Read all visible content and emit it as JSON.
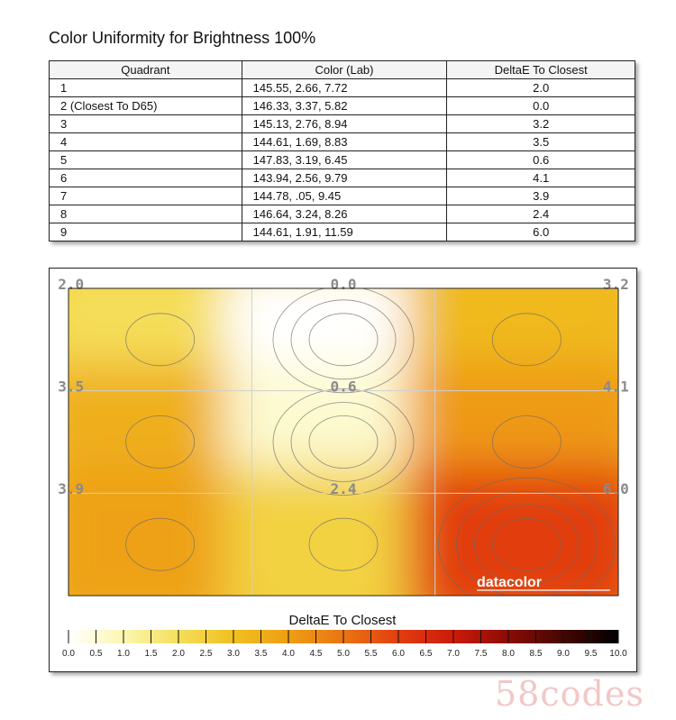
{
  "title": "Color Uniformity for Brightness 100%",
  "table": {
    "headers": [
      "Quadrant",
      "Color (Lab)",
      "DeltaE To Closest"
    ],
    "rows": [
      [
        "1",
        "145.55,  2.66,  7.72",
        "2.0"
      ],
      [
        "2 (Closest To D65)",
        "146.33,  3.37,  5.82",
        "0.0"
      ],
      [
        "3",
        "145.13,  2.76,  8.94",
        "3.2"
      ],
      [
        "4",
        "144.61,  1.69,  8.83",
        "3.5"
      ],
      [
        "5",
        "147.83,  3.19,  6.45",
        "0.6"
      ],
      [
        "6",
        "143.94,  2.56,  9.79",
        "4.1"
      ],
      [
        "7",
        "144.78,  .05,  9.45",
        "3.9"
      ],
      [
        "8",
        "146.64,  3.24,  8.26",
        "2.4"
      ],
      [
        "9",
        "144.61,  1.91,  11.59",
        "6.0"
      ]
    ]
  },
  "chart_data": {
    "type": "heatmap",
    "title": "DeltaE To Closest",
    "grid": true,
    "grid_rows": 3,
    "grid_cols": 3,
    "labels": [
      "2.0",
      "0.0",
      "3.2",
      "3.5",
      "0.6",
      "4.1",
      "3.9",
      "2.4",
      "6.0"
    ],
    "values": [
      2.0,
      0.0,
      3.2,
      3.5,
      0.6,
      4.1,
      3.9,
      2.4,
      6.0
    ],
    "colorbar": {
      "label": "DeltaE To Closest",
      "min": 0,
      "max": 10,
      "ticks": [
        "0.0",
        "0.5",
        "1.0",
        "1.5",
        "2.0",
        "2.5",
        "3.0",
        "3.5",
        "4.0",
        "4.5",
        "5.0",
        "5.5",
        "6.0",
        "6.5",
        "7.0",
        "7.5",
        "8.0",
        "8.5",
        "9.0",
        "9.5",
        "10.0"
      ]
    },
    "colors": {
      "0": "#ffffff",
      "1": "#fcf6b0",
      "2": "#f5de5a",
      "3": "#f0c020",
      "4": "#ee9e14",
      "5": "#ea7512",
      "6": "#e23e10",
      "7": "#cd1a0a",
      "8": "#8a0c04",
      "10": "#000000"
    },
    "logo": "datacolor"
  }
}
